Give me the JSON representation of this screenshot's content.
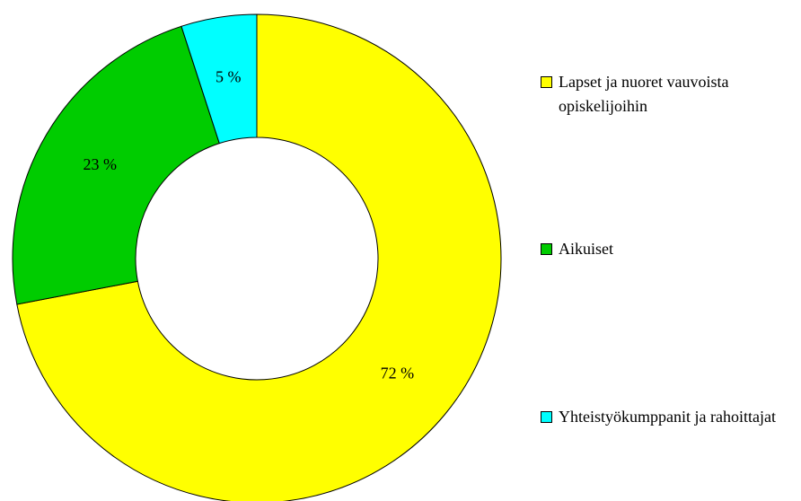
{
  "chart_data": {
    "type": "donut",
    "categories": [
      "Lapset ja nuoret vauvoista opiskelijoihin",
      "Aikuiset",
      "Yhteistyökumppanit ja rahoittajat"
    ],
    "values": [
      72,
      23,
      5
    ],
    "value_labels": [
      "72 %",
      "23 %",
      "5 %"
    ],
    "colors": [
      "#ffff00",
      "#00cc00",
      "#00ffff"
    ],
    "legend": "right"
  }
}
